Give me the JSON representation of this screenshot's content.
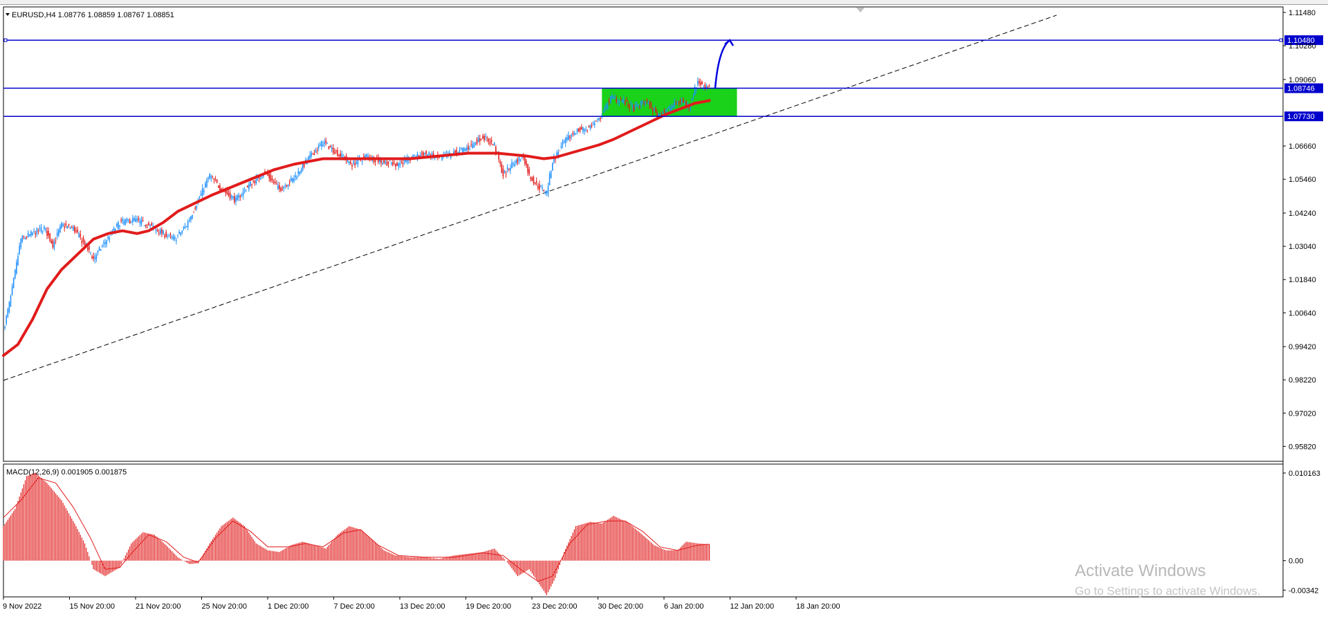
{
  "symbol_header": "EURUSD,H4  1.08776 1.08859 1.08767 1.08851",
  "macd_header": "MACD(12,26,9) 0.001905 0.001875",
  "watermark": {
    "title": "Activate Windows",
    "subtitle": "Go to Settings to activate Windows."
  },
  "colors": {
    "bull": "#1e90ff",
    "bear": "#e11b1b",
    "ma": "#e11b1b",
    "level_line": "#0000cc",
    "zone": "#19d219",
    "macd_hist": "#e11b1b",
    "grid_text": "#000000"
  },
  "chart_data": [
    {
      "type": "candlestick",
      "symbol": "EURUSD",
      "timeframe": "H4",
      "ylim": [
        0.9528,
        1.1168
      ],
      "y_ticks": [
        "1.11480",
        "1.10280",
        "1.09060",
        "1.06660",
        "1.05460",
        "1.04240",
        "1.03040",
        "1.01840",
        "1.00640",
        "0.99420",
        "0.98220",
        "0.97020",
        "0.95820"
      ],
      "x_ticks": [
        "9 Nov 2022",
        "15 Nov 20:00",
        "21 Nov 20:00",
        "25 Nov 20:00",
        "1 Dec 20:00",
        "7 Dec 20:00",
        "13 Dec 20:00",
        "19 Dec 20:00",
        "23 Dec 20:00",
        "30 Dec 20:00",
        "6 Jan 20:00",
        "12 Jan 20:00",
        "18 Jan 20:00"
      ],
      "close_path": [
        [
          0,
          1.0
        ],
        [
          5,
          1.012
        ],
        [
          12,
          1.033
        ],
        [
          20,
          1.035
        ],
        [
          28,
          1.037
        ],
        [
          34,
          1.031
        ],
        [
          40,
          1.038
        ],
        [
          48,
          1.037
        ],
        [
          56,
          1.031
        ],
        [
          62,
          1.026
        ],
        [
          70,
          1.032
        ],
        [
          80,
          1.039
        ],
        [
          90,
          1.04
        ],
        [
          100,
          1.038
        ],
        [
          110,
          1.035
        ],
        [
          118,
          1.033
        ],
        [
          126,
          1.038
        ],
        [
          134,
          1.047
        ],
        [
          142,
          1.056
        ],
        [
          150,
          1.051
        ],
        [
          160,
          1.047
        ],
        [
          170,
          1.053
        ],
        [
          180,
          1.057
        ],
        [
          190,
          1.051
        ],
        [
          200,
          1.055
        ],
        [
          210,
          1.062
        ],
        [
          220,
          1.068
        ],
        [
          230,
          1.064
        ],
        [
          240,
          1.06
        ],
        [
          250,
          1.063
        ],
        [
          260,
          1.061
        ],
        [
          270,
          1.06
        ],
        [
          280,
          1.062
        ],
        [
          290,
          1.064
        ],
        [
          300,
          1.062
        ],
        [
          310,
          1.064
        ],
        [
          320,
          1.066
        ],
        [
          330,
          1.07
        ],
        [
          338,
          1.067
        ],
        [
          344,
          1.056
        ],
        [
          350,
          1.06
        ],
        [
          358,
          1.063
        ],
        [
          362,
          1.056
        ],
        [
          368,
          1.052
        ],
        [
          374,
          1.05
        ],
        [
          378,
          1.061
        ],
        [
          386,
          1.068
        ],
        [
          394,
          1.072
        ],
        [
          402,
          1.073
        ],
        [
          410,
          1.076
        ],
        [
          418,
          1.084
        ],
        [
          426,
          1.083
        ],
        [
          434,
          1.08
        ],
        [
          442,
          1.083
        ],
        [
          450,
          1.078
        ],
        [
          458,
          1.08
        ],
        [
          466,
          1.083
        ],
        [
          472,
          1.081
        ],
        [
          478,
          1.09
        ],
        [
          482,
          1.088
        ],
        [
          486,
          1.0885
        ]
      ],
      "moving_average": [
        [
          0,
          0.991
        ],
        [
          10,
          0.995
        ],
        [
          20,
          1.004
        ],
        [
          30,
          1.015
        ],
        [
          40,
          1.022
        ],
        [
          52,
          1.028
        ],
        [
          62,
          1.033
        ],
        [
          72,
          1.035
        ],
        [
          82,
          1.036
        ],
        [
          92,
          1.035
        ],
        [
          100,
          1.036
        ],
        [
          110,
          1.039
        ],
        [
          120,
          1.043
        ],
        [
          132,
          1.046
        ],
        [
          144,
          1.049
        ],
        [
          158,
          1.052
        ],
        [
          172,
          1.055
        ],
        [
          186,
          1.058
        ],
        [
          200,
          1.06
        ],
        [
          220,
          1.062
        ],
        [
          240,
          1.062
        ],
        [
          260,
          1.062
        ],
        [
          280,
          1.062
        ],
        [
          300,
          1.063
        ],
        [
          320,
          1.064
        ],
        [
          340,
          1.064
        ],
        [
          360,
          1.063
        ],
        [
          372,
          1.062
        ],
        [
          380,
          1.0625
        ],
        [
          390,
          1.064
        ],
        [
          400,
          1.0655
        ],
        [
          410,
          1.067
        ],
        [
          420,
          1.069
        ],
        [
          432,
          1.072
        ],
        [
          444,
          1.075
        ],
        [
          456,
          1.078
        ],
        [
          466,
          1.08
        ],
        [
          476,
          1.082
        ],
        [
          486,
          1.083
        ]
      ],
      "levels": [
        {
          "label": "1.10480",
          "value": 1.1048
        },
        {
          "label": "1.08746",
          "value": 1.08746
        },
        {
          "label": "1.07730",
          "value": 1.0773
        }
      ],
      "zone": {
        "from_bar": 412,
        "to_bar": 505,
        "low": 1.0773,
        "high": 1.0875
      },
      "trendline": {
        "start": [
          0,
          0.982
        ],
        "end": [
          725,
          1.1138
        ]
      },
      "projection_arrow": {
        "start": [
          490,
          1.0875
        ],
        "end": [
          500,
          1.1048
        ]
      },
      "bars_shown": 726
    },
    {
      "type": "histogram",
      "name": "MACD(12,26,9)",
      "ylim": [
        -0.0042,
        0.0112
      ],
      "y_ticks": [
        "0.010163",
        "0.00",
        "-0.00342"
      ],
      "main_path": [
        [
          0,
          0.004
        ],
        [
          8,
          0.006
        ],
        [
          16,
          0.0098
        ],
        [
          22,
          0.0102
        ],
        [
          30,
          0.009
        ],
        [
          40,
          0.007
        ],
        [
          50,
          0.004
        ],
        [
          56,
          0.002
        ],
        [
          62,
          -0.001
        ],
        [
          70,
          -0.0018
        ],
        [
          80,
          -0.0008
        ],
        [
          88,
          0.002
        ],
        [
          96,
          0.0033
        ],
        [
          104,
          0.003
        ],
        [
          112,
          0.0018
        ],
        [
          120,
          0.0004
        ],
        [
          128,
          -0.0004
        ],
        [
          134,
          -0.0003
        ],
        [
          142,
          0.002
        ],
        [
          150,
          0.004
        ],
        [
          158,
          0.005
        ],
        [
          166,
          0.004
        ],
        [
          174,
          0.002
        ],
        [
          182,
          0.0012
        ],
        [
          190,
          0.001
        ],
        [
          198,
          0.0018
        ],
        [
          206,
          0.0022
        ],
        [
          214,
          0.0018
        ],
        [
          222,
          0.0014
        ],
        [
          230,
          0.003
        ],
        [
          238,
          0.004
        ],
        [
          246,
          0.0036
        ],
        [
          254,
          0.0024
        ],
        [
          262,
          0.0012
        ],
        [
          270,
          0.0006
        ],
        [
          280,
          0.0004
        ],
        [
          290,
          0.0004
        ],
        [
          300,
          0.0002
        ],
        [
          310,
          0.0006
        ],
        [
          320,
          0.0008
        ],
        [
          330,
          0.001
        ],
        [
          338,
          0.0014
        ],
        [
          346,
          0.0
        ],
        [
          354,
          -0.0018
        ],
        [
          362,
          -0.001
        ],
        [
          370,
          -0.003
        ],
        [
          374,
          -0.004
        ],
        [
          380,
          -0.002
        ],
        [
          386,
          0.001
        ],
        [
          394,
          0.004
        ],
        [
          404,
          0.0045
        ],
        [
          412,
          0.0043
        ],
        [
          420,
          0.0052
        ],
        [
          430,
          0.0044
        ],
        [
          440,
          0.003
        ],
        [
          448,
          0.0018
        ],
        [
          456,
          0.0012
        ],
        [
          464,
          0.0012
        ],
        [
          470,
          0.0022
        ],
        [
          478,
          0.002
        ],
        [
          486,
          0.0019
        ]
      ],
      "signal_path": [
        [
          0,
          0.005
        ],
        [
          12,
          0.007
        ],
        [
          24,
          0.0096
        ],
        [
          36,
          0.009
        ],
        [
          48,
          0.0062
        ],
        [
          60,
          0.0026
        ],
        [
          70,
          -0.001
        ],
        [
          80,
          -0.0008
        ],
        [
          90,
          0.0012
        ],
        [
          100,
          0.003
        ],
        [
          112,
          0.0022
        ],
        [
          124,
          0.0004
        ],
        [
          134,
          -0.0002
        ],
        [
          146,
          0.0026
        ],
        [
          158,
          0.0046
        ],
        [
          170,
          0.0034
        ],
        [
          182,
          0.0016
        ],
        [
          196,
          0.0016
        ],
        [
          208,
          0.002
        ],
        [
          220,
          0.0016
        ],
        [
          234,
          0.0032
        ],
        [
          246,
          0.0036
        ],
        [
          258,
          0.0018
        ],
        [
          272,
          0.0006
        ],
        [
          290,
          0.0004
        ],
        [
          310,
          0.0004
        ],
        [
          330,
          0.0009
        ],
        [
          344,
          0.0006
        ],
        [
          356,
          -0.001
        ],
        [
          368,
          -0.0024
        ],
        [
          378,
          -0.0018
        ],
        [
          390,
          0.002
        ],
        [
          402,
          0.0042
        ],
        [
          416,
          0.0046
        ],
        [
          428,
          0.0046
        ],
        [
          440,
          0.0034
        ],
        [
          452,
          0.0016
        ],
        [
          464,
          0.0012
        ],
        [
          478,
          0.0018
        ],
        [
          486,
          0.0019
        ]
      ]
    }
  ]
}
